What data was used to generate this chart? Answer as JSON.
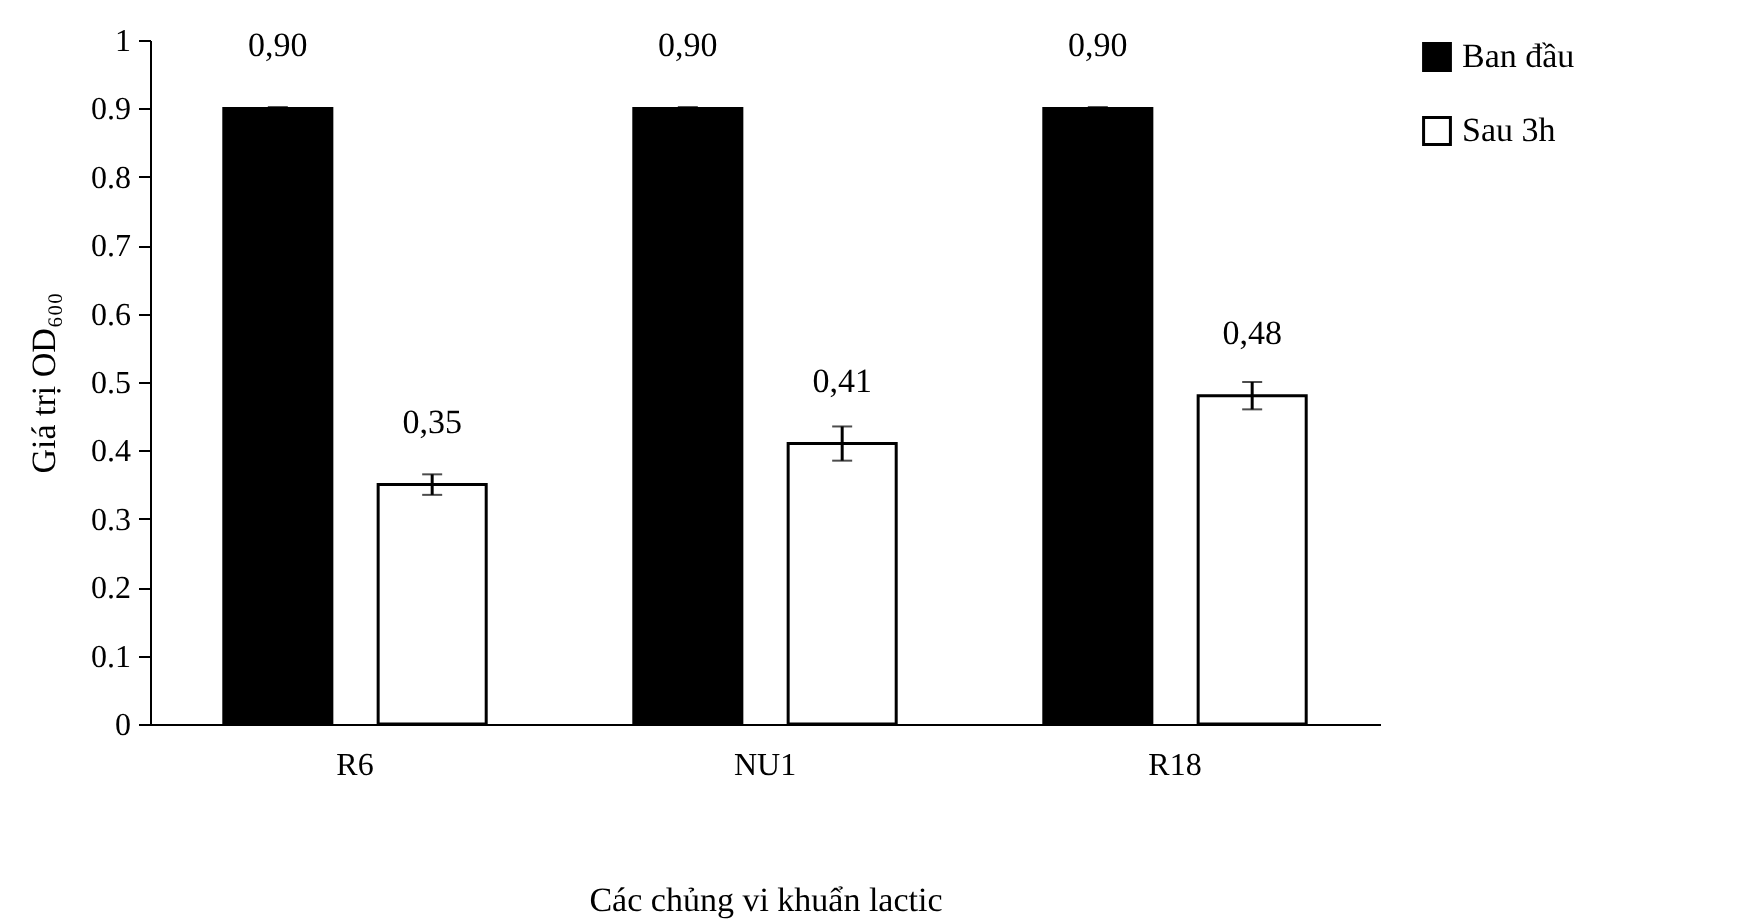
{
  "chart_data": {
    "type": "bar",
    "xlabel": "Các chủng vi khuẩn lactic",
    "ylabel": "Giá trị OD₆₀₀",
    "categories": [
      "R6",
      "NU1",
      "R18"
    ],
    "series": [
      {
        "name": "Ban đầu",
        "color": "#000000",
        "values": [
          0.9,
          0.9,
          0.9
        ],
        "errors": [
          0.002,
          0.002,
          0.002
        ],
        "value_labels": [
          "0,90",
          "0,90",
          "0,90"
        ]
      },
      {
        "name": "Sau 3h",
        "color": "#ffffff",
        "values": [
          0.35,
          0.41,
          0.48
        ],
        "errors": [
          0.015,
          0.025,
          0.02
        ],
        "value_labels": [
          "0,35",
          "0,41",
          "0,48"
        ]
      }
    ],
    "ylim": [
      0,
      1
    ],
    "yticks": [
      0,
      0.1,
      0.2,
      0.3,
      0.4,
      0.5,
      0.6,
      0.7,
      0.8,
      0.9,
      1
    ],
    "grid": false,
    "legend": "right"
  }
}
